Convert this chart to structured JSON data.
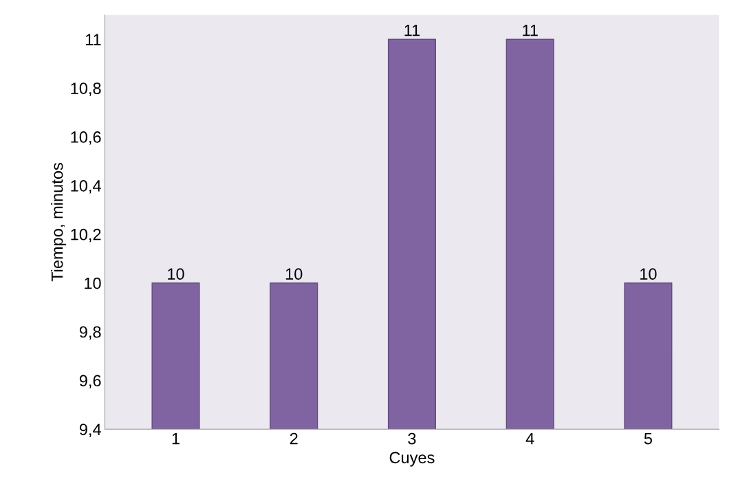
{
  "chart_data": {
    "type": "bar",
    "xlabel": "Cuyes",
    "ylabel": "Tiempo, minutos",
    "categories": [
      "1",
      "2",
      "3",
      "4",
      "5"
    ],
    "values": [
      10,
      10,
      11,
      11,
      10
    ],
    "color": "#8064a2",
    "ylim": [
      9.4,
      11.1
    ],
    "yticks": [
      {
        "value": 9.4,
        "label": "9,4"
      },
      {
        "value": 9.6,
        "label": "9,6"
      },
      {
        "value": 9.8,
        "label": "9,8"
      },
      10,
      {
        "value": 10.2,
        "label": "10,2"
      },
      {
        "value": 10.4,
        "label": "10,4"
      },
      {
        "value": 10.6,
        "label": "10,6"
      },
      {
        "value": 10.8,
        "label": "10,8"
      },
      11
    ],
    "data_labels": true,
    "grid": false,
    "legend": false
  }
}
